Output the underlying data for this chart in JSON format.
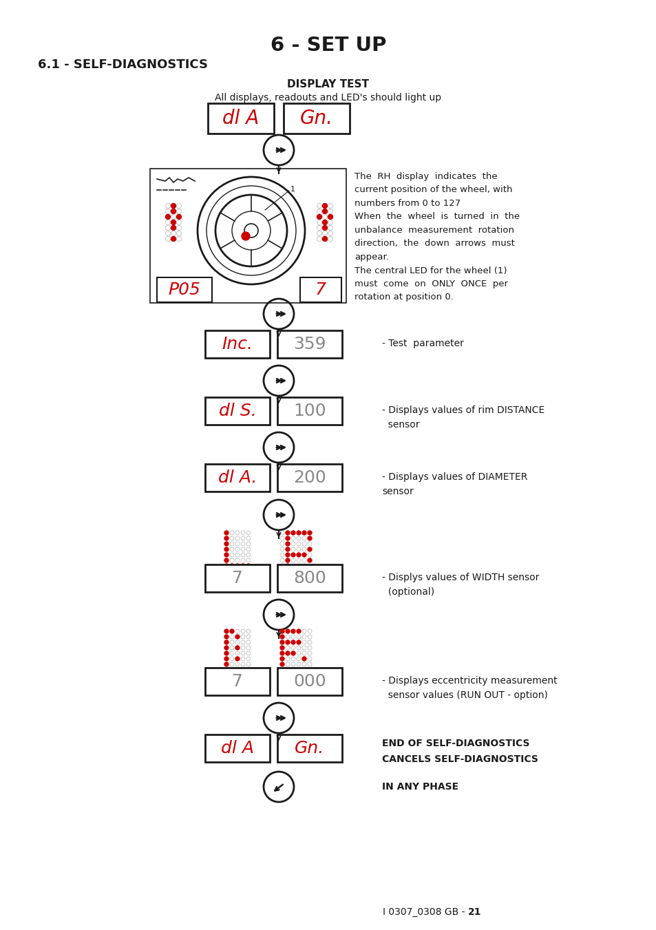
{
  "title": "6 - SET UP",
  "section": "6.1 - SELF-DIAGNOSTICS",
  "subtitle": "DISPLAY TEST",
  "subtitle2": "All displays, readouts and LED's should light up",
  "bg_color": "#ffffff",
  "text_color": "#1a1a1a",
  "red_color": "#cc0000",
  "footer_regular": "I 0307_0308 GB - ",
  "footer_bold": "21",
  "desc1": "The  RH  display  indicates  the\ncurrent position of the wheel, with\nnumbers from 0 to 127\nWhen  the  wheel  is  turned  in  the\nunbalance  measurement  rotation\ndirection,  the  down  arrows  must\nappear.\nThe central LED for the wheel (1)\nmust  come  on  ONLY  ONCE  per\nrotation at position 0.",
  "desc2": "- Test  parameter",
  "desc3": "- Displays values of rim DISTANCE\n  sensor",
  "desc4": "- Displays values of DIAMETER\nsensor",
  "desc5": "- Displys values of WIDTH sensor\n  (optional)",
  "desc6": "- Displays eccentricity measurement\n  sensor values (RUN OUT - option)",
  "end1": "END OF SELF-DIAGNOSTICS\nCANCELS SELF-DIAGNOSTICS",
  "end2": "IN ANY PHASE",
  "dot_width_left": [
    [
      1,
      0,
      0,
      0,
      0
    ],
    [
      1,
      0,
      0,
      0,
      0
    ],
    [
      1,
      0,
      0,
      0,
      0
    ],
    [
      1,
      0,
      0,
      0,
      0
    ],
    [
      1,
      0,
      0,
      0,
      0
    ],
    [
      1,
      0,
      0,
      0,
      0
    ],
    [
      1,
      1,
      1,
      1,
      1
    ]
  ],
  "dot_width_right": [
    [
      0,
      1,
      1,
      1,
      1,
      1
    ],
    [
      1,
      0,
      0,
      0,
      0,
      1
    ],
    [
      1,
      0,
      0,
      0,
      0,
      0
    ],
    [
      1,
      0,
      0,
      0,
      0,
      1
    ],
    [
      1,
      1,
      1,
      1,
      1,
      0
    ],
    [
      1,
      0,
      0,
      0,
      0,
      1
    ],
    [
      1,
      0,
      0,
      0,
      0,
      0
    ]
  ],
  "dot_ecc_left": [
    [
      1,
      1,
      0,
      0,
      0
    ],
    [
      1,
      0,
      1,
      0,
      0
    ],
    [
      1,
      0,
      0,
      0,
      0
    ],
    [
      1,
      0,
      1,
      0,
      0
    ],
    [
      1,
      0,
      0,
      0,
      0
    ],
    [
      1,
      0,
      1,
      0,
      0
    ],
    [
      1,
      0,
      0,
      0,
      0
    ]
  ],
  "dot_ecc_right": [
    [
      1,
      1,
      1,
      1,
      0,
      0
    ],
    [
      1,
      0,
      0,
      0,
      0,
      0
    ],
    [
      1,
      1,
      1,
      1,
      0,
      0
    ],
    [
      1,
      0,
      0,
      0,
      0,
      0
    ],
    [
      1,
      1,
      1,
      0,
      0,
      0
    ],
    [
      1,
      0,
      0,
      0,
      1,
      0
    ],
    [
      1,
      0,
      0,
      0,
      0,
      0
    ]
  ]
}
